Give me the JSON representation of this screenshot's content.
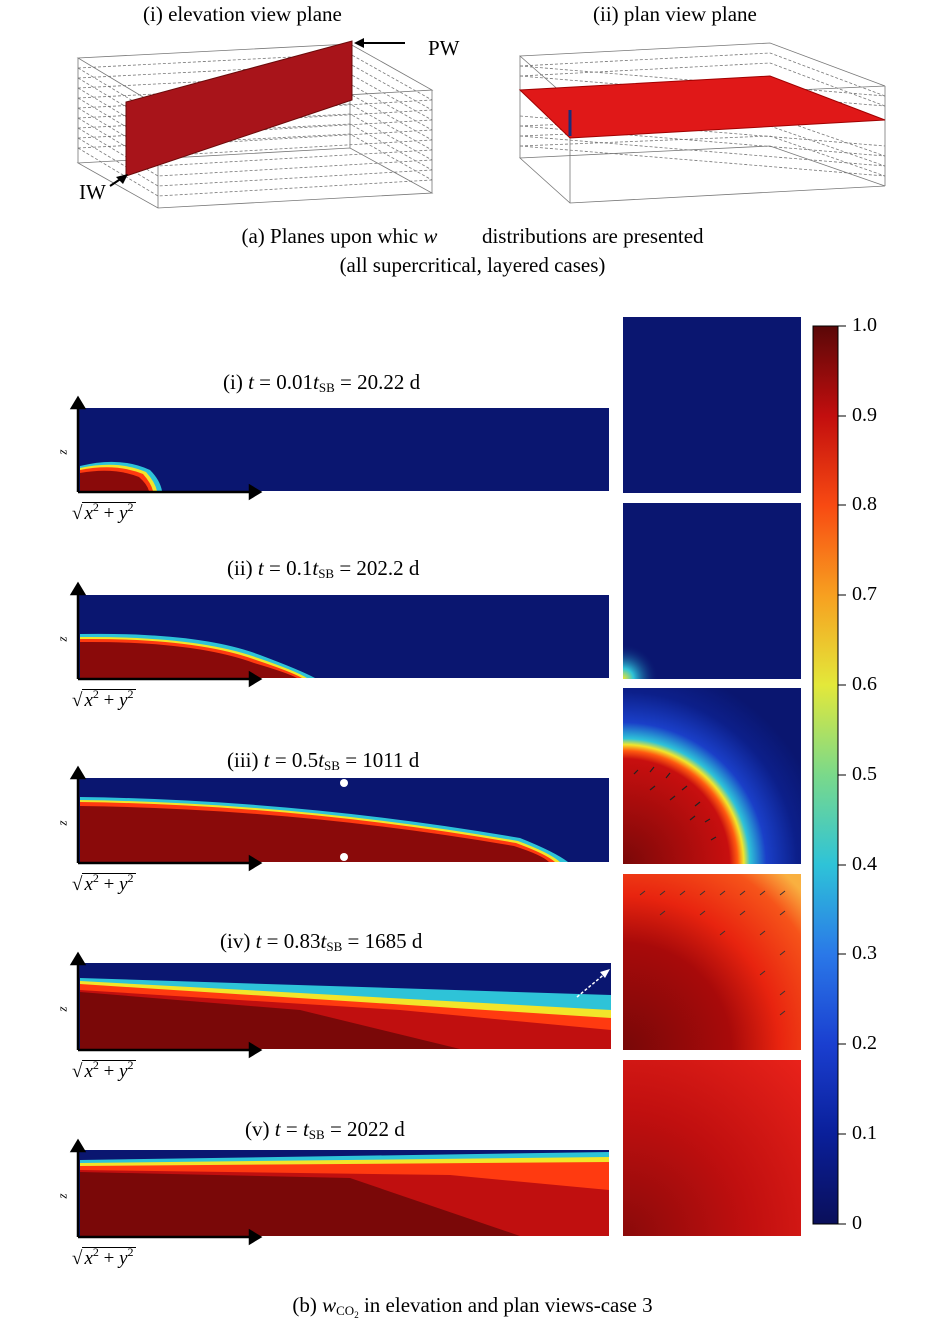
{
  "part_a": {
    "left_title": "(i) elevation view plane",
    "right_title": "(ii) plan view plane",
    "pw_label": "PW",
    "iw_label": "IW",
    "caption_line1_pre": "(a) Planes upon whic",
    "caption_symbol": "w",
    "caption_line1_post": "distributions are presented",
    "caption_line2": "(all supercritical, layered cases)"
  },
  "panels": [
    {
      "roman": "(i)",
      "tvar": "t",
      "eq": "= 0.01",
      "tsb": "t",
      "sb": "SB",
      "rest": "= 20.22 d"
    },
    {
      "roman": "(ii)",
      "tvar": "t",
      "eq": "= 0.1",
      "tsb": "t",
      "sb": "SB",
      "rest": "= 202.2 d"
    },
    {
      "roman": "(iii)",
      "tvar": "t",
      "eq": "= 0.5",
      "tsb": "t",
      "sb": "SB",
      "rest": "= 1011 d"
    },
    {
      "roman": "(iv)",
      "tvar": "t",
      "eq": "= 0.83",
      "tsb": "t",
      "sb": "SB",
      "rest": "= 1685 d"
    },
    {
      "roman": "(v)",
      "tvar": "t",
      "eq": "=",
      "tsb": "t",
      "sb": "SB",
      "rest": "= 2022 d"
    }
  ],
  "axes": {
    "z_label": "z",
    "x_label_x": "x",
    "x_label_y": "y",
    "sq": "2",
    "plus": "+"
  },
  "colorbar": {
    "ticks": [
      "1.0",
      "0.9",
      "0.8",
      "0.7",
      "0.6",
      "0.5",
      "0.4",
      "0.3",
      "0.2",
      "0.1",
      "0"
    ],
    "colors": [
      "#5a0a0a",
      "#b0000a",
      "#ff1f10",
      "#ff8a10",
      "#f2e52a",
      "#8be07a",
      "#2ec3d8",
      "#2a6fe0",
      "#1a2ca6",
      "#0a1a7a"
    ]
  },
  "caption_b": {
    "pre": "(b) ",
    "w": "w",
    "sub": "CO",
    "subsub": "2",
    "post": " in elevation and plan views-case 3"
  }
}
